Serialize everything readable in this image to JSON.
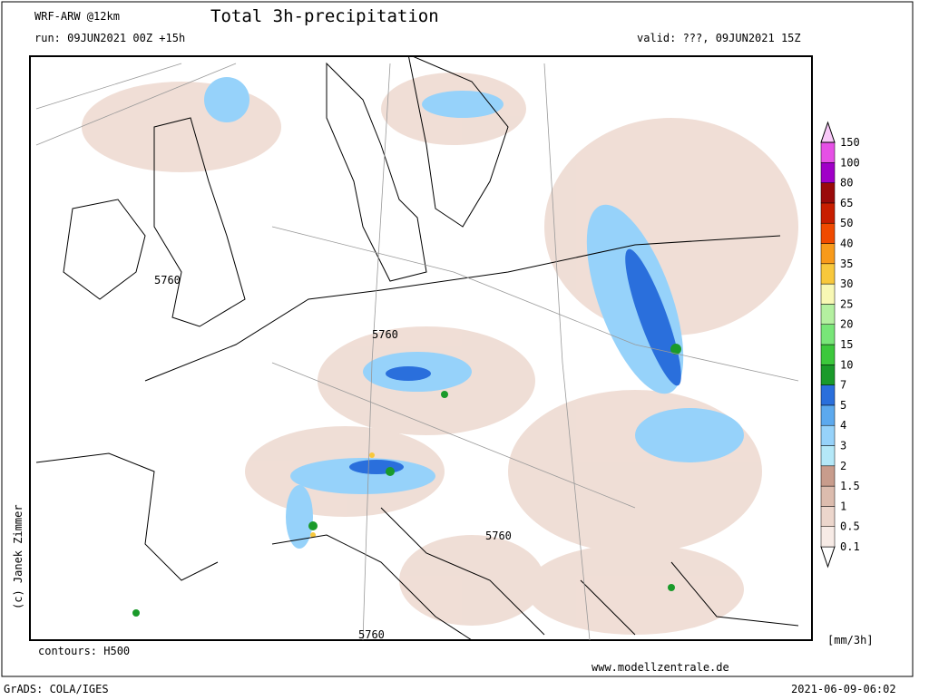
{
  "header": {
    "model": "WRF-ARW @12km",
    "title": "Total 3h-precipitation",
    "run": "run: 09JUN2021 00Z +15h",
    "valid": "valid: ???, 09JUN2021 15Z"
  },
  "map": {
    "contour_labels": [
      "5760",
      "5760",
      "5760",
      "5760"
    ],
    "copyright": "(c) Janek Zimmer",
    "contours_note": "contours: H500",
    "website": "www.modellzentrale.de"
  },
  "legend": {
    "unit": "[mm/3h]",
    "levels": [
      "0.1",
      "0.5",
      "1",
      "1.5",
      "2",
      "3",
      "4",
      "5",
      "7",
      "10",
      "15",
      "20",
      "25",
      "30",
      "35",
      "40",
      "50",
      "65",
      "80",
      "100",
      "150"
    ],
    "colors": [
      "#ffffff",
      "#f7ebe6",
      "#ecd6cc",
      "#dcbcae",
      "#c89c8c",
      "#b4e8f8",
      "#96d2fa",
      "#5ca9ee",
      "#2a6fdc",
      "#1a9a2a",
      "#3cc83c",
      "#78e678",
      "#b4f0a0",
      "#f8f8b4",
      "#f8c83c",
      "#f89a1a",
      "#f04a00",
      "#c81e00",
      "#9a0a0a",
      "#a000c8",
      "#e650e6",
      "#f8c8f8"
    ]
  },
  "footer": {
    "software": "GrADS: COLA/IGES",
    "timestamp": "2021-06-09-06:02"
  }
}
